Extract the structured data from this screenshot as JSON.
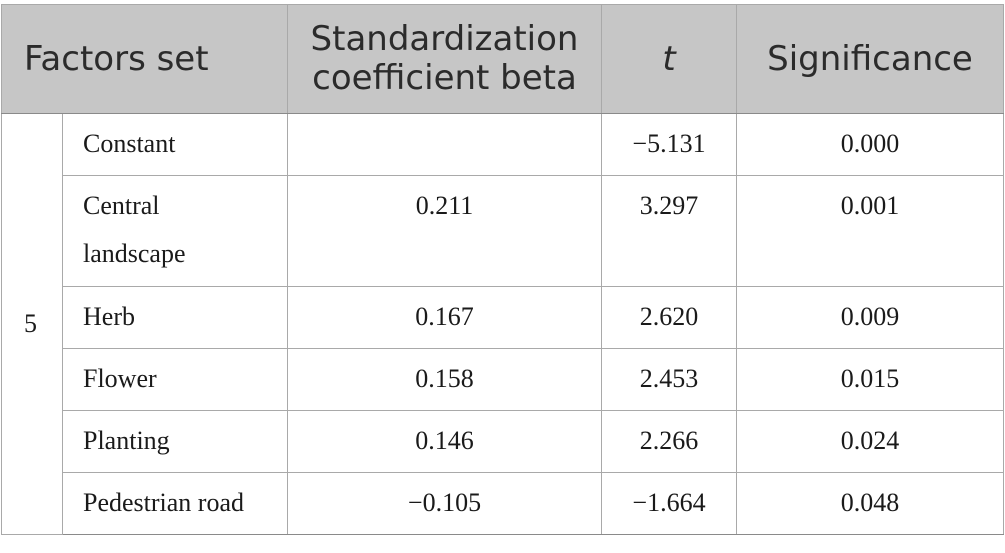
{
  "table": {
    "headers": {
      "factors_set": "Factors set",
      "beta_line1": "Standardization",
      "beta_line2": "coefficient beta",
      "t": "t",
      "significance": "Significance"
    },
    "set_label": "5",
    "rows": [
      {
        "factor": "Constant",
        "beta": "",
        "t": "−5.131",
        "significance": "0.000"
      },
      {
        "factor_line1": "Central",
        "factor_line2": "landscape",
        "beta": "0.211",
        "t": "3.297",
        "significance": "0.001"
      },
      {
        "factor": "Herb",
        "beta": "0.167",
        "t": "2.620",
        "significance": "0.009"
      },
      {
        "factor": "Flower",
        "beta": "0.158",
        "t": "2.453",
        "significance": "0.015"
      },
      {
        "factor": "Planting",
        "beta": "0.146",
        "t": "2.266",
        "significance": "0.024"
      },
      {
        "factor": "Pedestrian road",
        "beta": "−0.105",
        "t": "−1.664",
        "significance": "0.048"
      }
    ]
  }
}
